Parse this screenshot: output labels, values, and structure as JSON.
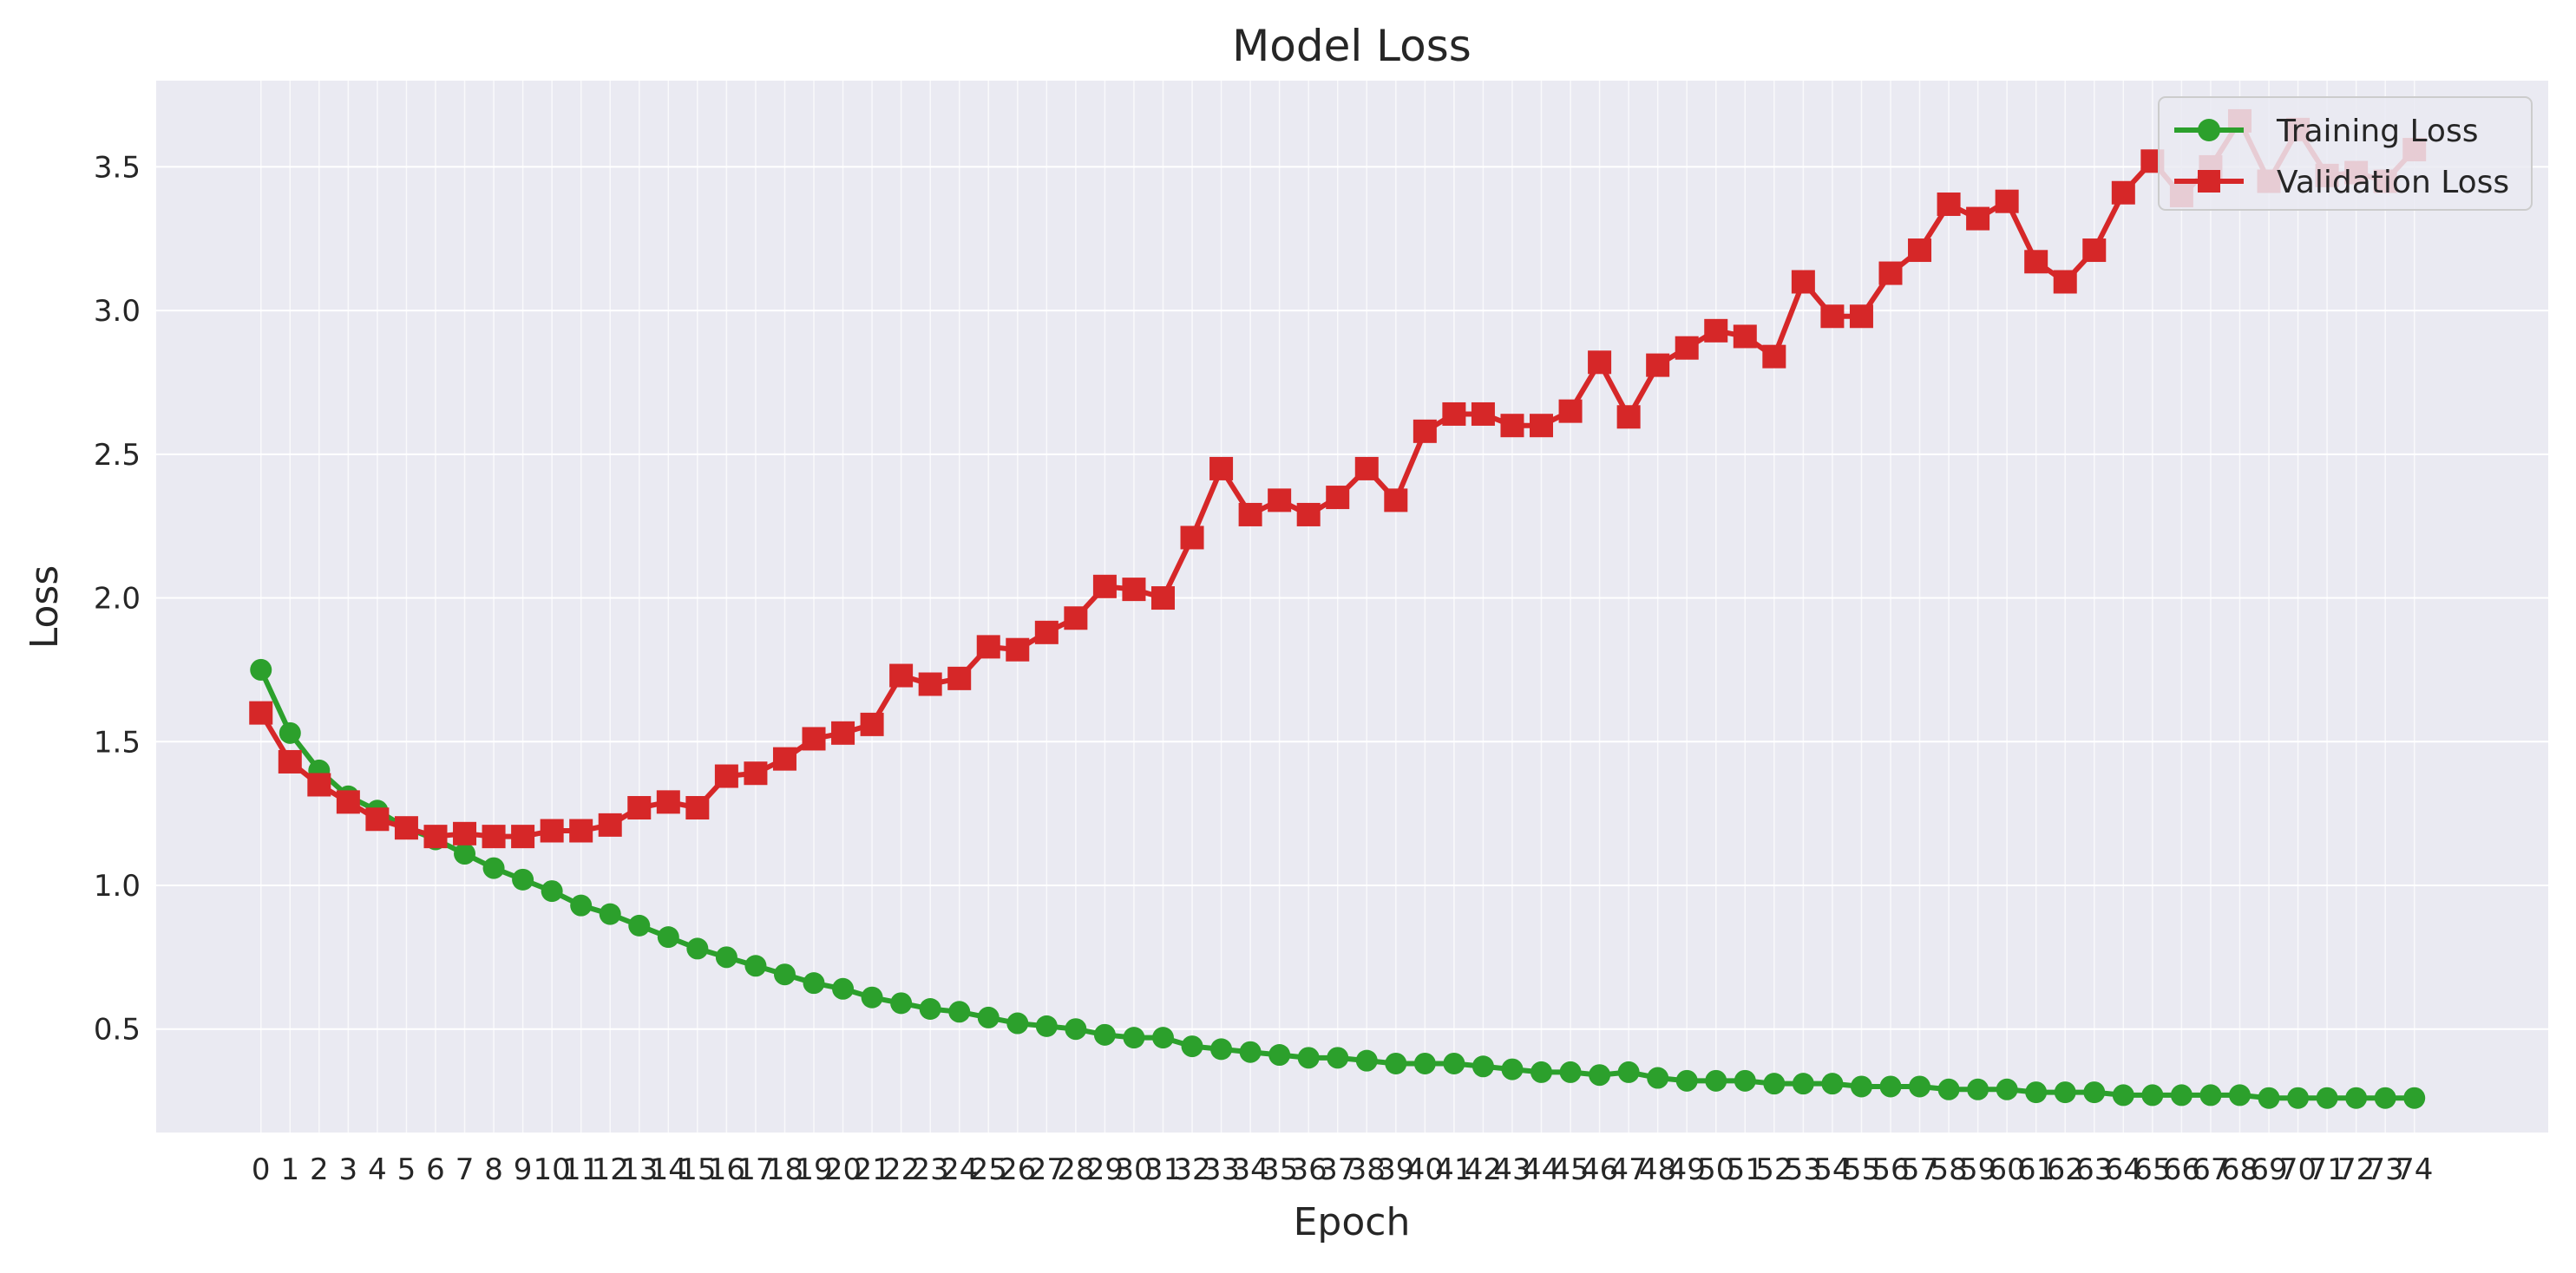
{
  "chart_data": {
    "type": "line",
    "title": "Model Loss",
    "xlabel": "Epoch",
    "ylabel": "Loss",
    "x": [
      0,
      1,
      2,
      3,
      4,
      5,
      6,
      7,
      8,
      9,
      10,
      11,
      12,
      13,
      14,
      15,
      16,
      17,
      18,
      19,
      20,
      21,
      22,
      23,
      24,
      25,
      26,
      27,
      28,
      29,
      30,
      31,
      32,
      33,
      34,
      35,
      36,
      37,
      38,
      39,
      40,
      41,
      42,
      43,
      44,
      45,
      46,
      47,
      48,
      49,
      50,
      51,
      52,
      53,
      54,
      55,
      56,
      57,
      58,
      59,
      60,
      61,
      62,
      63,
      64,
      65,
      66,
      67,
      68,
      69,
      70,
      71,
      72,
      73,
      74
    ],
    "xlim": [
      -3.6,
      78.6
    ],
    "ylim": [
      0.14,
      3.8
    ],
    "yticks": [
      0.5,
      1.0,
      1.5,
      2.0,
      2.5,
      3.0,
      3.5
    ],
    "ytick_labels": [
      "0.5",
      "1.0",
      "1.5",
      "2.0",
      "2.5",
      "3.0",
      "3.5"
    ],
    "grid": true,
    "legend_position": "top-right",
    "series": [
      {
        "name": "Training Loss",
        "color": "#2ca02c",
        "marker": "circle",
        "values": [
          1.75,
          1.53,
          1.4,
          1.31,
          1.26,
          1.2,
          1.16,
          1.11,
          1.06,
          1.02,
          0.98,
          0.93,
          0.9,
          0.86,
          0.82,
          0.78,
          0.75,
          0.72,
          0.69,
          0.66,
          0.64,
          0.61,
          0.59,
          0.57,
          0.56,
          0.54,
          0.52,
          0.51,
          0.5,
          0.48,
          0.47,
          0.47,
          0.44,
          0.43,
          0.42,
          0.41,
          0.4,
          0.4,
          0.39,
          0.38,
          0.38,
          0.38,
          0.37,
          0.36,
          0.35,
          0.35,
          0.34,
          0.35,
          0.33,
          0.32,
          0.32,
          0.32,
          0.31,
          0.31,
          0.31,
          0.3,
          0.3,
          0.3,
          0.29,
          0.29,
          0.29,
          0.28,
          0.28,
          0.28,
          0.27,
          0.27,
          0.27,
          0.27,
          0.27,
          0.26,
          0.26,
          0.26,
          0.26,
          0.26,
          0.26
        ]
      },
      {
        "name": "Validation Loss",
        "color": "#d62728",
        "marker": "square",
        "values": [
          1.6,
          1.43,
          1.35,
          1.29,
          1.23,
          1.2,
          1.17,
          1.18,
          1.17,
          1.17,
          1.19,
          1.19,
          1.21,
          1.27,
          1.29,
          1.27,
          1.38,
          1.39,
          1.44,
          1.51,
          1.53,
          1.56,
          1.73,
          1.7,
          1.72,
          1.83,
          1.82,
          1.88,
          1.93,
          2.04,
          2.03,
          2.0,
          2.21,
          2.45,
          2.29,
          2.34,
          2.29,
          2.35,
          2.45,
          2.34,
          2.58,
          2.64,
          2.64,
          2.6,
          2.6,
          2.65,
          2.82,
          2.63,
          2.81,
          2.87,
          2.93,
          2.91,
          2.84,
          3.1,
          2.98,
          2.98,
          3.13,
          3.21,
          3.37,
          3.32,
          3.38,
          3.17,
          3.1,
          3.21,
          3.41,
          3.52,
          3.4,
          3.5,
          3.66,
          3.45,
          3.63,
          3.47,
          3.48,
          3.45,
          3.56
        ]
      }
    ]
  }
}
